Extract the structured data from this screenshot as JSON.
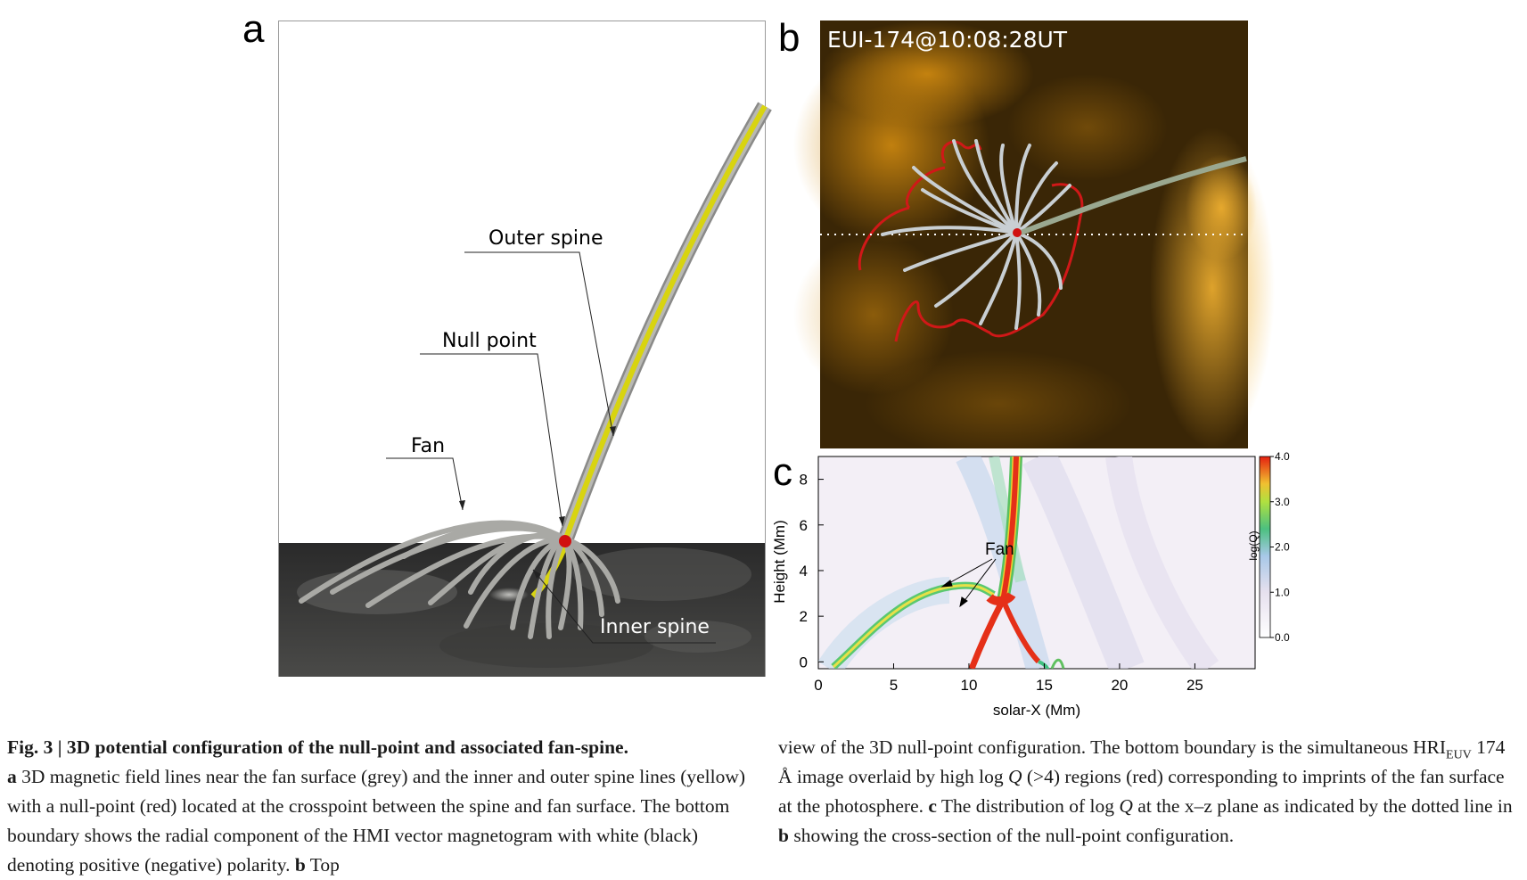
{
  "panel_labels": {
    "a": "a",
    "b": "b",
    "c": "c"
  },
  "panel_a": {
    "annotations": {
      "outer_spine": "Outer spine",
      "null_point": "Null point",
      "fan": "Fan",
      "inner_spine": "Inner spine"
    }
  },
  "panel_b": {
    "timestamp": "EUI-174@10:08:28UT"
  },
  "chart_data": {
    "type": "heatmap",
    "xlabel": "solar-X (Mm)",
    "ylabel": "Height (Mm)",
    "xlim": [
      0,
      29
    ],
    "ylim": [
      -0.3,
      9
    ],
    "x_ticks": [
      "0",
      "5",
      "10",
      "15",
      "20",
      "25"
    ],
    "y_ticks": [
      "0",
      "2",
      "4",
      "6",
      "8"
    ],
    "colorbar": {
      "label": "log(Q)",
      "range": [
        0.0,
        4.0
      ],
      "ticks": [
        "0.0",
        "1.0",
        "2.0",
        "3.0",
        "4.0"
      ]
    },
    "annotation": "Fan",
    "colors": {
      "high": "#e53018",
      "mid": "#f0e040",
      "low_mid": "#3cc05a",
      "low": "#a8c8e8",
      "background": "#f4f0f6"
    }
  },
  "caption": {
    "fig_label": "Fig. 3 | 3D potential configuration of the null-point and associated fan-spine.",
    "a_label": "a",
    "a_text": " 3D magnetic field lines near the fan surface (grey) and the inner and outer spine lines (yellow) with a null-point (red) located at the crosspoint between the spine and fan surface. The bottom boundary shows the radial component of the HMI vector magnetogram with white (black) denoting positive (negative) polarity. ",
    "b_label": "b",
    "b_text_1": " Top",
    "b_text_2": "view of the 3D null-point configuration. The bottom boundary is the simultaneous HRI",
    "euv_sub": "EUV",
    "b_text_3": " 174 Å image overlaid by high log ",
    "q1": "Q",
    "b_text_4": " (>4) regions (red) corresponding to imprints of the fan surface at the photosphere. ",
    "c_label": "c",
    "c_text_1": " The distribution of log ",
    "q2": "Q",
    "c_text_2": " at the x–z plane as indicated by the dotted line in ",
    "b_label2": "b",
    "c_text_3": " showing the cross-section of the null-point configuration."
  }
}
